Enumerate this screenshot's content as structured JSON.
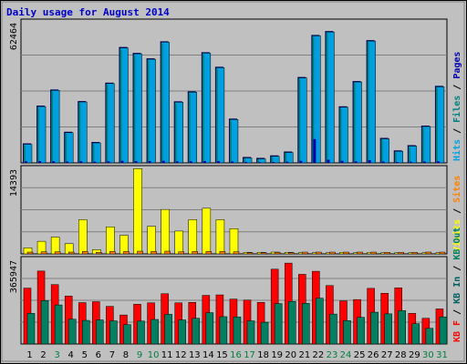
{
  "title": "Daily usage for August 2014",
  "colors": {
    "background": "#c0c0c0",
    "title": "#0000cc",
    "hits": "#00a0e0",
    "files": "#008080",
    "pages": "#0000b0",
    "visits": "#ffff00",
    "sites": "#ff8000",
    "kb_in": "#006060",
    "kb_out": "#008060",
    "kb_f": "#ff0000",
    "weekday_label": "#000000",
    "weekend_label": "#008040"
  },
  "chart_data": [
    {
      "type": "bar",
      "panel": "hits",
      "max_label": "62464",
      "ymax": 62464,
      "right_label_parts": [
        {
          "text": "Hits",
          "color": "#00a0e0"
        },
        {
          "text": " / ",
          "color": "#000000"
        },
        {
          "text": "Files",
          "color": "#008080"
        },
        {
          "text": " / ",
          "color": "#000000"
        },
        {
          "text": "Pages",
          "color": "#0000b0"
        }
      ],
      "categories": [
        "1",
        "2",
        "3",
        "4",
        "5",
        "6",
        "7",
        "8",
        "9",
        "10",
        "11",
        "12",
        "13",
        "14",
        "15",
        "16",
        "17",
        "18",
        "19",
        "20",
        "21",
        "22",
        "23",
        "24",
        "25",
        "26",
        "27",
        "28",
        "29",
        "30",
        "31"
      ],
      "series": [
        {
          "name": "Hits",
          "values": [
            8600,
            25200,
            32300,
            13700,
            27200,
            9200,
            35300,
            51000,
            48400,
            46000,
            53500,
            27100,
            31500,
            48700,
            42300,
            19500,
            2600,
            2200,
            3300,
            5000,
            37800,
            56300,
            58000,
            24900,
            36000,
            54000,
            11000,
            5500,
            7800,
            16400,
            33900
          ]
        },
        {
          "name": "Files",
          "values": [
            8000,
            24600,
            31700,
            13100,
            26600,
            8600,
            34700,
            50400,
            47800,
            45400,
            52900,
            26500,
            30900,
            48100,
            41700,
            18900,
            2300,
            1900,
            3000,
            4700,
            37300,
            55700,
            57500,
            24300,
            35500,
            53400,
            10500,
            5000,
            7300,
            15800,
            33300
          ]
        },
        {
          "name": "Pages",
          "values": [
            700,
            800,
            700,
            600,
            700,
            500,
            700,
            900,
            800,
            800,
            900,
            700,
            700,
            800,
            800,
            600,
            400,
            300,
            400,
            500,
            900,
            10500,
            1400,
            900,
            700,
            1200,
            600,
            400,
            500,
            600,
            700
          ]
        }
      ]
    },
    {
      "type": "bar",
      "panel": "visits",
      "max_label": "14393",
      "ymax": 14393,
      "right_label_parts": [
        {
          "text": "Visits",
          "color": "#ffff00"
        },
        {
          "text": " / ",
          "color": "#000000"
        },
        {
          "text": "Sites",
          "color": "#ff8000"
        }
      ],
      "categories": [
        "1",
        "2",
        "3",
        "4",
        "5",
        "6",
        "7",
        "8",
        "9",
        "10",
        "11",
        "12",
        "13",
        "14",
        "15",
        "16",
        "17",
        "18",
        "19",
        "20",
        "21",
        "22",
        "23",
        "24",
        "25",
        "26",
        "27",
        "28",
        "29",
        "30",
        "31"
      ],
      "series": [
        {
          "name": "Visits",
          "values": [
            1000,
            2100,
            2800,
            1700,
            5700,
            700,
            4500,
            3100,
            14200,
            4600,
            7400,
            3800,
            5700,
            7600,
            5700,
            4200,
            250,
            250,
            300,
            250,
            200,
            200,
            200,
            250,
            200,
            250,
            200,
            200,
            200,
            200,
            200
          ]
        },
        {
          "name": "Sites",
          "values": [
            300,
            350,
            350,
            300,
            400,
            250,
            400,
            400,
            450,
            400,
            450,
            350,
            400,
            400,
            400,
            350,
            200,
            200,
            250,
            200,
            300,
            300,
            300,
            300,
            300,
            300,
            250,
            250,
            250,
            300,
            300
          ]
        }
      ]
    },
    {
      "type": "bar",
      "panel": "kbytes",
      "max_label": "365947",
      "ymax": 365947,
      "right_label_parts": [
        {
          "text": "KB F",
          "color": "#ff0000"
        },
        {
          "text": " / ",
          "color": "#000000"
        },
        {
          "text": "KB In",
          "color": "#006060"
        },
        {
          "text": " / ",
          "color": "#000000"
        },
        {
          "text": "KB Out",
          "color": "#008060"
        }
      ],
      "categories": [
        "1",
        "2",
        "3",
        "4",
        "5",
        "6",
        "7",
        "8",
        "9",
        "10",
        "11",
        "12",
        "13",
        "14",
        "15",
        "16",
        "17",
        "18",
        "19",
        "20",
        "21",
        "22",
        "23",
        "24",
        "25",
        "26",
        "27",
        "28",
        "29",
        "30",
        "31"
      ],
      "series": [
        {
          "name": "KB F",
          "values": [
            239000,
            312000,
            254000,
            205000,
            177000,
            181000,
            161000,
            124000,
            170000,
            176000,
            215000,
            176000,
            178000,
            208000,
            210000,
            192000,
            188000,
            178000,
            320000,
            346000,
            298000,
            311000,
            250000,
            184000,
            190000,
            238000,
            217000,
            240000,
            131000,
            110000,
            150000
          ]
        },
        {
          "name": "KB Out",
          "values": [
            131000,
            186000,
            167000,
            106000,
            101000,
            103000,
            99000,
            83000,
            98000,
            105000,
            127000,
            103000,
            110000,
            134000,
            117000,
            116000,
            99000,
            93000,
            173000,
            182000,
            174000,
            196000,
            128000,
            100000,
            114000,
            136000,
            129000,
            143000,
            87000,
            67000,
            116000
          ]
        },
        {
          "name": "KB In",
          "values": [
            0,
            0,
            0,
            0,
            0,
            0,
            0,
            0,
            0,
            0,
            0,
            0,
            0,
            0,
            0,
            0,
            0,
            0,
            0,
            0,
            0,
            0,
            0,
            0,
            0,
            0,
            0,
            0,
            0,
            0,
            0
          ]
        }
      ]
    }
  ],
  "weekend_days": [
    "3",
    "9",
    "10",
    "16",
    "17",
    "23",
    "24",
    "30",
    "31"
  ]
}
